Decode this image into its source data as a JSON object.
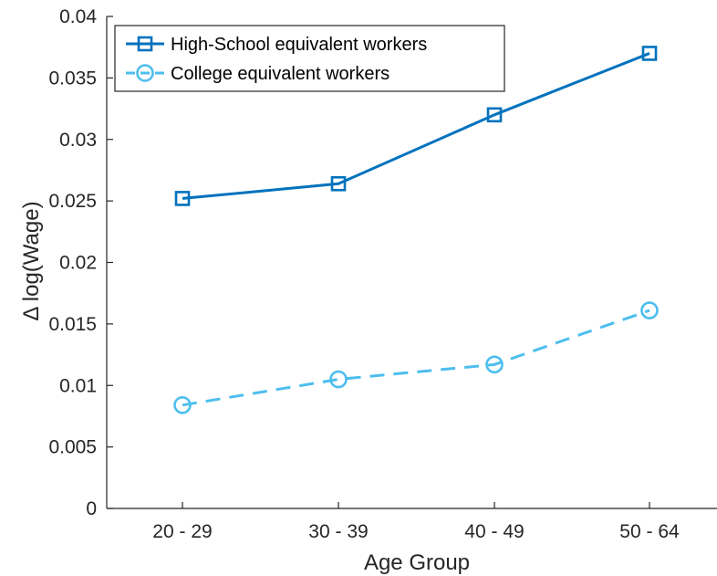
{
  "chart_data": {
    "type": "line",
    "categories": [
      "20 - 29",
      "30 - 39",
      "40 - 49",
      "50 - 64"
    ],
    "xlabel": "Age Group",
    "ylabel": "Δ log(Wage)",
    "ylim": [
      0,
      0.04
    ],
    "yticks": [
      "0",
      "0.005",
      "0.01",
      "0.015",
      "0.02",
      "0.025",
      "0.03",
      "0.035",
      "0.04"
    ],
    "grid": false,
    "legend_position": "top-left",
    "series": [
      {
        "name": "High-School equivalent workers",
        "values": [
          0.0252,
          0.0264,
          0.032,
          0.037
        ],
        "color": "#0072BD",
        "line_style": "solid",
        "marker": "square"
      },
      {
        "name": "College equivalent workers",
        "values": [
          0.0084,
          0.0105,
          0.0117,
          0.0161
        ],
        "color": "#4DBEEE",
        "line_style": "dashed",
        "marker": "circle"
      }
    ]
  }
}
